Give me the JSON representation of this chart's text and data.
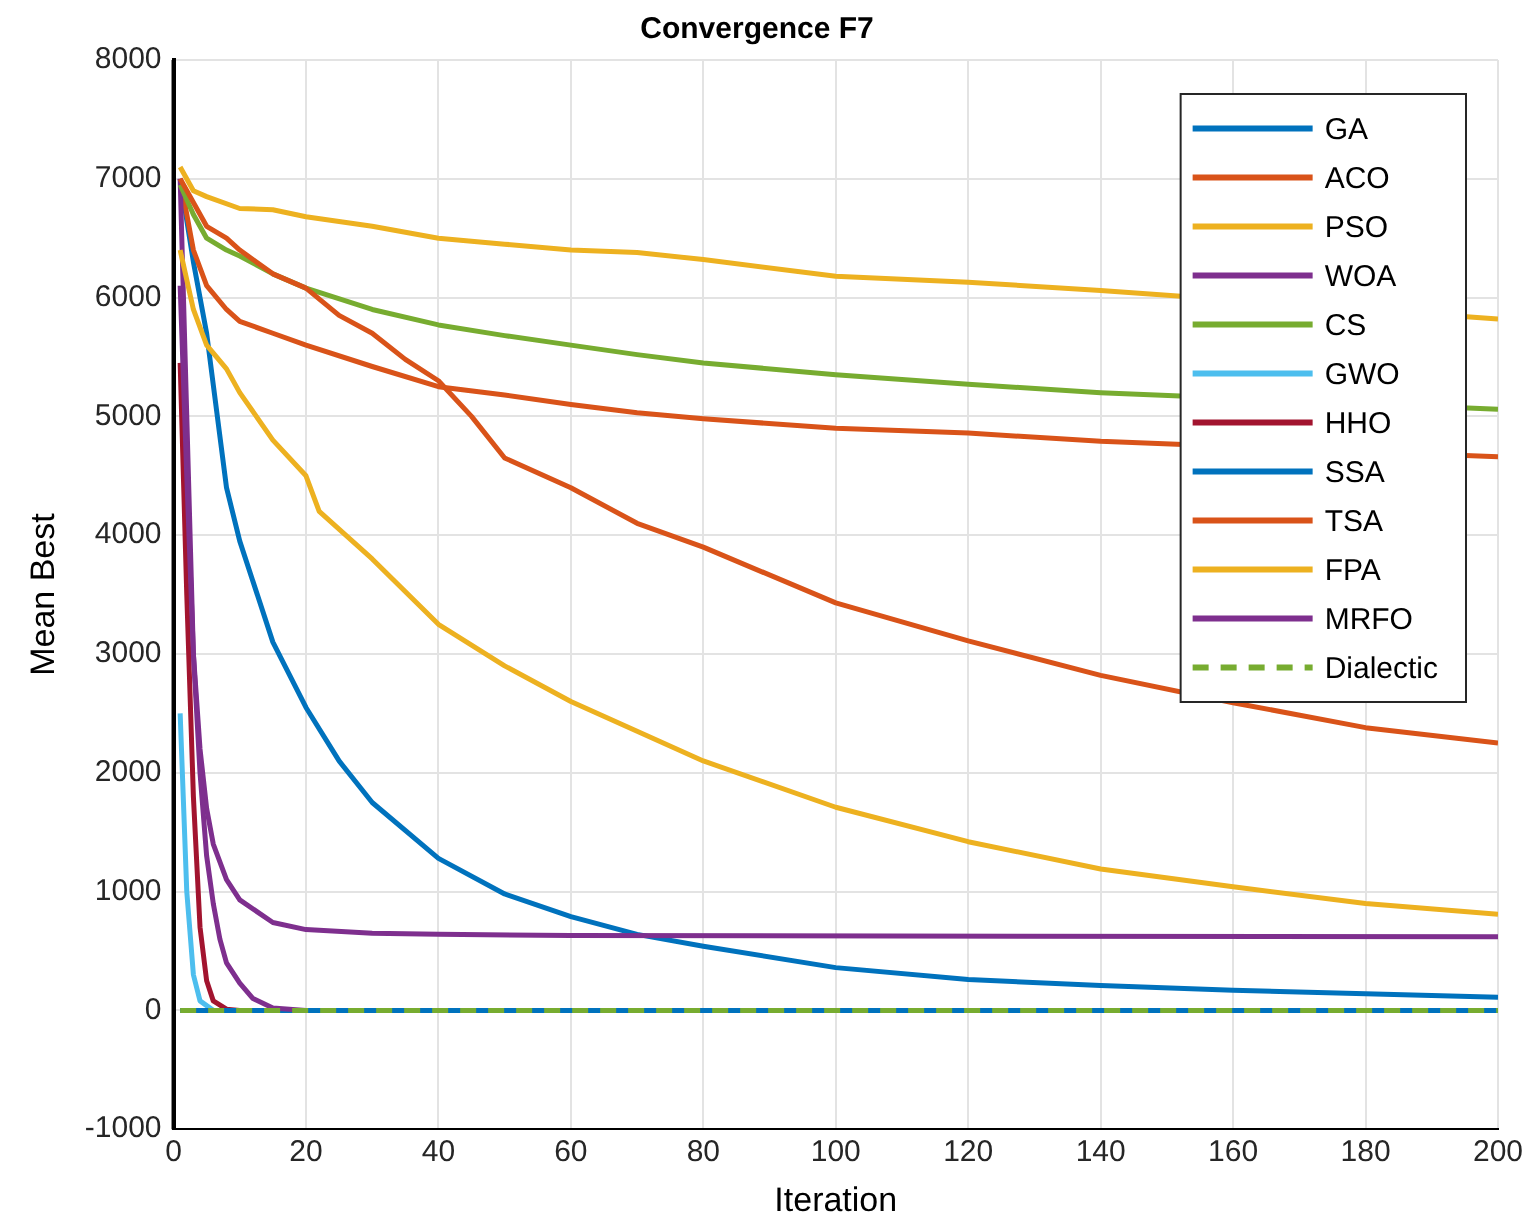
{
  "chart_data": {
    "type": "line",
    "title": "Convergence F7",
    "xlabel": "Iteration",
    "ylabel": "Mean Best",
    "xlim": [
      0,
      200
    ],
    "xticks": [
      0,
      20,
      40,
      60,
      80,
      100,
      120,
      140,
      160,
      180,
      200
    ],
    "ylim": [
      -1000,
      8000
    ],
    "yticks": [
      -1000,
      0,
      1000,
      2000,
      3000,
      4000,
      5000,
      6000,
      7000,
      8000
    ],
    "grid": true,
    "legend": "top right",
    "marker": "none",
    "series": [
      {
        "name": "GA",
        "color": "#0072bd",
        "x": [
          1,
          3,
          5,
          8,
          10,
          15,
          20,
          25,
          30,
          40,
          50,
          60,
          70,
          80,
          100,
          120,
          140,
          160,
          180,
          200
        ],
        "values": [
          7000,
          6300,
          5700,
          4400,
          3950,
          3100,
          2550,
          2100,
          1750,
          1280,
          980,
          790,
          640,
          540,
          360,
          260,
          210,
          170,
          140,
          110
        ]
      },
      {
        "name": "ACO",
        "color": "#d95319",
        "x": [
          1,
          3,
          5,
          8,
          10,
          15,
          20,
          30,
          40,
          50,
          60,
          70,
          80,
          100,
          120,
          140,
          200
        ],
        "values": [
          7000,
          6400,
          6100,
          5900,
          5800,
          5700,
          5600,
          5420,
          5250,
          5180,
          5100,
          5030,
          4980,
          4900,
          4860,
          4790,
          4660
        ]
      },
      {
        "name": "PSO",
        "color": "#edb120",
        "x": [
          1,
          3,
          5,
          10,
          15,
          20,
          30,
          40,
          50,
          60,
          70,
          80,
          100,
          120,
          140,
          200
        ],
        "values": [
          7100,
          6900,
          6850,
          6750,
          6740,
          6680,
          6600,
          6500,
          6450,
          6400,
          6380,
          6320,
          6180,
          6130,
          6060,
          5820
        ]
      },
      {
        "name": "WOA",
        "color": "#7e2f8e",
        "x": [
          1,
          2,
          3,
          4,
          5,
          6,
          8,
          10,
          15,
          20,
          30,
          40,
          60,
          200
        ],
        "values": [
          7000,
          5000,
          3000,
          2200,
          1700,
          1400,
          1100,
          930,
          740,
          680,
          650,
          640,
          630,
          620
        ]
      },
      {
        "name": "CS",
        "color": "#77ac30",
        "x": [
          1,
          3,
          5,
          8,
          10,
          15,
          20,
          30,
          40,
          50,
          60,
          70,
          80,
          100,
          120,
          140,
          200
        ],
        "values": [
          6950,
          6700,
          6500,
          6400,
          6350,
          6200,
          6080,
          5900,
          5770,
          5680,
          5600,
          5520,
          5450,
          5350,
          5270,
          5200,
          5060
        ]
      },
      {
        "name": "GWO",
        "color": "#4dbeee",
        "x": [
          1,
          2,
          3,
          4,
          6
        ],
        "values": [
          2500,
          1000,
          300,
          80,
          0
        ]
      },
      {
        "name": "HHO",
        "color": "#a2142f",
        "x": [
          1,
          2,
          3,
          4,
          5,
          6,
          8,
          10
        ],
        "values": [
          5450,
          3500,
          1800,
          700,
          250,
          80,
          10,
          0
        ]
      },
      {
        "name": "SSA",
        "color": "#0072bd",
        "x": [
          1,
          200
        ],
        "values": [
          0,
          0
        ]
      },
      {
        "name": "TSA",
        "color": "#d95319",
        "x": [
          1,
          3,
          5,
          8,
          10,
          15,
          20,
          25,
          30,
          35,
          40,
          45,
          50,
          60,
          70,
          80,
          100,
          120,
          140,
          160,
          180,
          200
        ],
        "values": [
          7000,
          6800,
          6600,
          6500,
          6400,
          6200,
          6080,
          5850,
          5700,
          5480,
          5300,
          5000,
          4650,
          4400,
          4100,
          3900,
          3430,
          3110,
          2820,
          2590,
          2380,
          2250
        ]
      },
      {
        "name": "FPA",
        "color": "#edb120",
        "x": [
          1,
          3,
          5,
          8,
          10,
          15,
          20,
          22,
          30,
          40,
          50,
          60,
          70,
          80,
          100,
          120,
          140,
          160,
          180,
          200
        ],
        "values": [
          6400,
          5900,
          5600,
          5400,
          5200,
          4800,
          4500,
          4200,
          3800,
          3250,
          2900,
          2600,
          2350,
          2100,
          1710,
          1420,
          1190,
          1040,
          900,
          810
        ]
      },
      {
        "name": "MRFO",
        "color": "#7e2f8e",
        "x": [
          1,
          2,
          3,
          4,
          5,
          6,
          7,
          8,
          10,
          12,
          15,
          20
        ],
        "values": [
          6100,
          4500,
          3000,
          2000,
          1300,
          900,
          600,
          400,
          230,
          100,
          20,
          0
        ]
      },
      {
        "name": "Dialectic",
        "color": "#77ac30",
        "line_style": "dashed",
        "x": [
          1,
          200
        ],
        "values": [
          0,
          0
        ]
      }
    ]
  }
}
